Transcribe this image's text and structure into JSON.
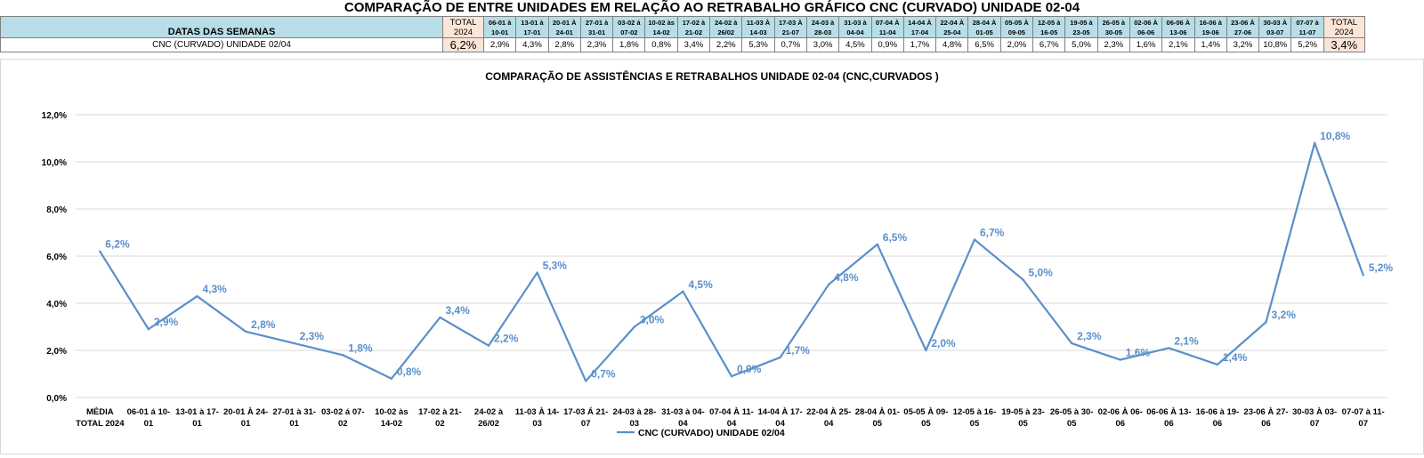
{
  "header": {
    "title": "COMPARAÇÃO DE ENTRE UNIDADES EM RELAÇÃO AO RETRABALHO GRÁFICO CNC (CURVADO) UNIDADE 02-04",
    "label_col": "DATAS DAS SEMANAS",
    "total_first": [
      "TOTAL",
      "2024"
    ],
    "total_last": [
      "TOTAL",
      "2024"
    ],
    "weeks": [
      [
        "06-01 à",
        "10-01"
      ],
      [
        "13-01 à",
        "17-01"
      ],
      [
        "20-01 À",
        "24-01"
      ],
      [
        "27-01 à",
        "31-01"
      ],
      [
        "03-02 á",
        "07-02"
      ],
      [
        "10-02 às",
        "14-02"
      ],
      [
        "17-02 à",
        "21-02"
      ],
      [
        "24-02 à",
        "26/02"
      ],
      [
        "11-03 À",
        "14-03"
      ],
      [
        "17-03 À",
        "21-07"
      ],
      [
        "24-03 à",
        "28-03"
      ],
      [
        "31-03 à",
        "04-04"
      ],
      [
        "07-04 À",
        "11-04"
      ],
      [
        "14-04 À",
        "17-04"
      ],
      [
        "22-04 À",
        "25-04"
      ],
      [
        "28-04 À",
        "01-05"
      ],
      [
        "05-05 À",
        "09-05"
      ],
      [
        "12-05 à",
        "16-05"
      ],
      [
        "19-05 à",
        "23-05"
      ],
      [
        "26-05 à",
        "30-05"
      ],
      [
        "02-06 À",
        "06-06"
      ],
      [
        "06-06 À",
        "13-06"
      ],
      [
        "16-06 à",
        "19-06"
      ],
      [
        "23-06 À",
        "27-06"
      ],
      [
        "30-03 À",
        "03-07"
      ],
      [
        "07-07 à",
        "11-07"
      ]
    ]
  },
  "row": {
    "label": "CNC (CURVADO) UNIDADE 02/04",
    "total_first": "6,2%",
    "values": [
      "2,9%",
      "4,3%",
      "2,8%",
      "2,3%",
      "1,8%",
      "0,8%",
      "3,4%",
      "2,2%",
      "5,3%",
      "0,7%",
      "3,0%",
      "4,5%",
      "0,9%",
      "1,7%",
      "4,8%",
      "6,5%",
      "2,0%",
      "6,7%",
      "5,0%",
      "2,3%",
      "1,6%",
      "2,1%",
      "1,4%",
      "3,2%",
      "10,8%",
      "5,2%"
    ],
    "total_last": "3,4%"
  },
  "chart_data": {
    "type": "line",
    "title": "COMPARAÇÃO DE ASSISTÊNCIAS E RETRABALHOS UNIDADE 02-04  (CNC,CURVADOS )",
    "legend_position": "bottom",
    "color": "#5b8fcb",
    "ylim": [
      0,
      12
    ],
    "y_ticks": [
      "0,0%",
      "2,0%",
      "4,0%",
      "6,0%",
      "8,0%",
      "10,0%",
      "12,0%"
    ],
    "grid": true,
    "categories": [
      [
        "MÉDIA",
        "TOTAL 2024"
      ],
      [
        "06-01 á 10-",
        "01"
      ],
      [
        "13-01 à 17-",
        "01"
      ],
      [
        "20-01 À 24-",
        "01"
      ],
      [
        "27-01 à 31-",
        "01"
      ],
      [
        "03-02 á 07-",
        "02"
      ],
      [
        "10-02 às",
        "14-02"
      ],
      [
        "17-02 à 21-",
        "02"
      ],
      [
        "24-02 à",
        "26/02"
      ],
      [
        "11-03 À 14-",
        "03"
      ],
      [
        "17-03 Á 21-",
        "07"
      ],
      [
        "24-03 à 28-",
        "03"
      ],
      [
        "31-03 à 04-",
        "04"
      ],
      [
        "07-04 À 11-",
        "04"
      ],
      [
        "14-04 À 17-",
        "04"
      ],
      [
        "22-04 À 25-",
        "04"
      ],
      [
        "28-04 À 01-",
        "05"
      ],
      [
        "05-05 À 09-",
        "05"
      ],
      [
        "12-05 à 16-",
        "05"
      ],
      [
        "19-05 à 23-",
        "05"
      ],
      [
        "26-05 à 30-",
        "05"
      ],
      [
        "02-06 À 06-",
        "06"
      ],
      [
        "06-06 À 13-",
        "06"
      ],
      [
        "16-06 à 19-",
        "06"
      ],
      [
        "23-06 À 27-",
        "06"
      ],
      [
        "30-03 À 03-",
        "07"
      ],
      [
        "07-07 à 11-",
        "07"
      ]
    ],
    "series": [
      {
        "name": "CNC (CURVADO) UNIDADE 02/04",
        "values": [
          6.2,
          2.9,
          4.3,
          2.8,
          2.3,
          1.8,
          0.8,
          3.4,
          2.2,
          5.3,
          0.7,
          3.0,
          4.5,
          0.9,
          1.7,
          4.8,
          6.5,
          2.0,
          6.7,
          5.0,
          2.3,
          1.6,
          2.1,
          1.4,
          3.2,
          10.8,
          5.2
        ],
        "labels": [
          "6,2%",
          "2,9%",
          "4,3%",
          "2,8%",
          "2,3%",
          "1,8%",
          "0,8%",
          "3,4%",
          "2,2%",
          "5,3%",
          "0,7%",
          "3,0%",
          "4,5%",
          "0,9%",
          "1,7%",
          "4,8%",
          "6,5%",
          "2,0%",
          "6,7%",
          "5,0%",
          "2,3%",
          "1,6%",
          "2,1%",
          "1,4%",
          "3,2%",
          "10,8%",
          "5,2%"
        ]
      }
    ]
  }
}
